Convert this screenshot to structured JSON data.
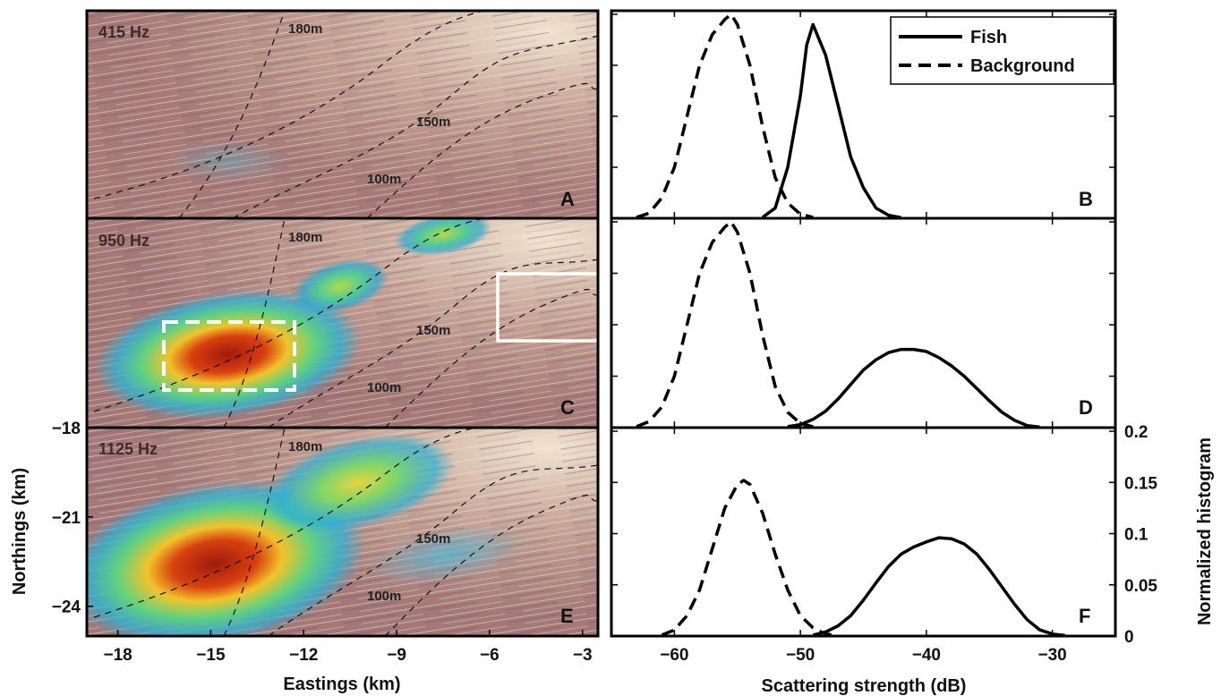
{
  "chart_data": [
    {
      "type": "heatmap",
      "panel_letter": "A",
      "frequency_label": "415 Hz",
      "contour_labels": [
        "180m",
        "150m",
        "100m"
      ],
      "xlabel": "",
      "ylabel": "",
      "xlim": [
        -19,
        -2.5
      ],
      "ylim": [
        -25,
        -15
      ]
    },
    {
      "type": "line",
      "panel_letter": "B",
      "xlim": [
        -65,
        -25
      ],
      "ylim": [
        0,
        0.2
      ],
      "legend": {
        "placement": "top-right",
        "entries": [
          "Fish",
          "Background"
        ]
      },
      "series": [
        {
          "name": "Fish",
          "style": "solid",
          "x": [
            -53,
            -52,
            -51,
            -50,
            -49.5,
            -49,
            -48,
            -47,
            -46,
            -45,
            -44,
            -43,
            -42
          ],
          "y": [
            0.001,
            0.01,
            0.05,
            0.12,
            0.17,
            0.19,
            0.16,
            0.11,
            0.06,
            0.03,
            0.01,
            0.003,
            0.0005
          ]
        },
        {
          "name": "Background",
          "style": "dashed",
          "x": [
            -63,
            -62,
            -61,
            -60,
            -59,
            -58,
            -57,
            -56,
            -55.5,
            -55,
            -54,
            -53,
            -52,
            -51,
            -50,
            -49
          ],
          "y": [
            0.001,
            0.005,
            0.02,
            0.05,
            0.1,
            0.15,
            0.18,
            0.195,
            0.2,
            0.19,
            0.15,
            0.09,
            0.04,
            0.015,
            0.004,
            0.001
          ]
        }
      ]
    },
    {
      "type": "heatmap",
      "panel_letter": "C",
      "frequency_label": "950 Hz",
      "contour_labels": [
        "180m",
        "150m",
        "100m"
      ],
      "xlabel": "",
      "ylabel": "",
      "xlim": [
        -19,
        -2.5
      ],
      "ylim": [
        -25,
        -15
      ]
    },
    {
      "type": "line",
      "panel_letter": "D",
      "xlim": [
        -65,
        -25
      ],
      "ylim": [
        0,
        0.2
      ],
      "series": [
        {
          "name": "Fish",
          "style": "solid",
          "x": [
            -51,
            -50,
            -49,
            -48,
            -47,
            -46,
            -45,
            -44,
            -43,
            -42,
            -41,
            -40,
            -39,
            -38,
            -37,
            -36,
            -35,
            -34,
            -33,
            -32,
            -31
          ],
          "y": [
            0.001,
            0.003,
            0.008,
            0.016,
            0.028,
            0.042,
            0.056,
            0.066,
            0.073,
            0.076,
            0.076,
            0.074,
            0.068,
            0.06,
            0.05,
            0.038,
            0.026,
            0.015,
            0.007,
            0.002,
            0.0005
          ]
        },
        {
          "name": "Background",
          "style": "dashed",
          "x": [
            -63,
            -62,
            -61,
            -60,
            -59,
            -58,
            -57,
            -56,
            -55.5,
            -55,
            -54,
            -53,
            -52,
            -51,
            -50,
            -49
          ],
          "y": [
            0.001,
            0.006,
            0.02,
            0.05,
            0.1,
            0.15,
            0.18,
            0.195,
            0.2,
            0.19,
            0.15,
            0.09,
            0.04,
            0.015,
            0.004,
            0.001
          ]
        }
      ]
    },
    {
      "type": "heatmap",
      "panel_letter": "E",
      "frequency_label": "1125 Hz",
      "contour_labels": [
        "180m",
        "150m",
        "100m"
      ],
      "xlabel": "Eastings (km)",
      "ylabel": "Northings (km)",
      "xticks": [
        -18,
        -15,
        -12,
        -9,
        -6,
        -3
      ],
      "yticks": [
        -18,
        -21,
        -24
      ],
      "xlim": [
        -19,
        -2.5
      ],
      "ylim": [
        -25,
        -18
      ]
    },
    {
      "type": "line",
      "panel_letter": "F",
      "xlabel": "Scattering strength (dB)",
      "ylabel": "Normalized histogram",
      "xticks": [
        -60,
        -50,
        -40,
        -30
      ],
      "yticks": [
        "0",
        "0.05",
        "0.1",
        "0.15",
        "0.2"
      ],
      "xlim": [
        -65,
        -25
      ],
      "ylim": [
        0,
        0.2
      ],
      "series": [
        {
          "name": "Fish",
          "style": "solid",
          "x": [
            -49,
            -48,
            -47,
            -46,
            -45,
            -44,
            -43,
            -42,
            -41,
            -40,
            -39,
            -38,
            -37,
            -36,
            -35,
            -34,
            -33,
            -32,
            -31,
            -30,
            -29
          ],
          "y": [
            0.001,
            0.004,
            0.01,
            0.02,
            0.035,
            0.052,
            0.068,
            0.08,
            0.087,
            0.092,
            0.096,
            0.095,
            0.09,
            0.08,
            0.065,
            0.048,
            0.031,
            0.016,
            0.006,
            0.002,
            0.0005
          ]
        },
        {
          "name": "Background",
          "style": "dashed",
          "x": [
            -61,
            -60,
            -59,
            -58,
            -57,
            -56,
            -55,
            -54.5,
            -54,
            -53,
            -52,
            -51,
            -50,
            -49,
            -48,
            -47
          ],
          "y": [
            0.001,
            0.006,
            0.02,
            0.045,
            0.085,
            0.125,
            0.148,
            0.152,
            0.148,
            0.12,
            0.08,
            0.045,
            0.02,
            0.008,
            0.002,
            0.0005
          ]
        }
      ]
    }
  ]
}
